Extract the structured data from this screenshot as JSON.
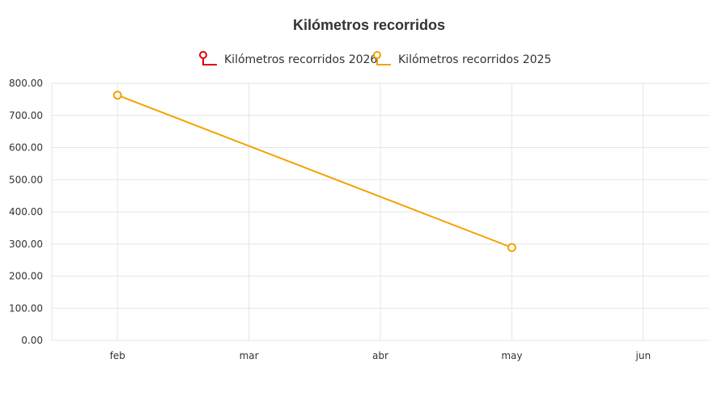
{
  "chart_data": {
    "type": "line",
    "title": "Kilómetros recorridos",
    "categories": [
      "feb",
      "mar",
      "abr",
      "may",
      "jun"
    ],
    "y_ticks": [
      "0.00",
      "100.00",
      "200.00",
      "300.00",
      "400.00",
      "500.00",
      "600.00",
      "700.00",
      "800.00"
    ],
    "ylim": [
      0,
      800
    ],
    "grid": true,
    "legend_position": "top-center",
    "series": [
      {
        "name": "Kilómetros recorridos 2026",
        "color": "#e3000f",
        "values": [
          null,
          null,
          null,
          null,
          null
        ]
      },
      {
        "name": "Kilómetros recorridos 2025",
        "color": "#f5a100",
        "values": [
          763,
          null,
          null,
          289,
          null
        ]
      }
    ]
  }
}
